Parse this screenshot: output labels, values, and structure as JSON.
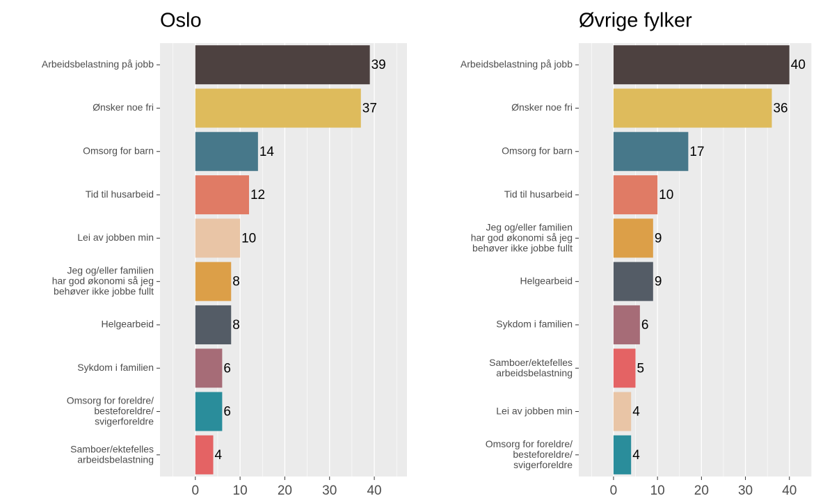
{
  "chart_data": [
    {
      "type": "bar",
      "orientation": "horizontal",
      "title": "Oslo",
      "categories": [
        "Arbeidsbelastning på jobb",
        "Ønsker noe fri",
        "Omsorg for barn",
        "Tid til husarbeid",
        "Lei av jobben min",
        "Jeg og/eller familien\nhar god økonomi så jeg\nbehøver ikke jobbe fullt",
        "Helgearbeid",
        "Sykdom i familien",
        "Omsorg for foreldre/\nbesteforeldre/\nsvigerforeldre",
        "Samboer/ektefelles\narbeidsbelastning"
      ],
      "values": [
        39,
        37,
        14,
        12,
        10,
        8,
        8,
        6,
        6,
        4
      ],
      "colors": [
        "#4d4140",
        "#debb5c",
        "#47788a",
        "#e07b65",
        "#e9c5a6",
        "#dc9f48",
        "#545c66",
        "#a66c77",
        "#2a8d9b",
        "#e46364"
      ],
      "xlim": [
        -7.9,
        47.3
      ],
      "xticks": [
        0,
        10,
        20,
        30,
        40
      ],
      "xticks_minor": [
        -5,
        5,
        15,
        25,
        35,
        45
      ],
      "grid": true
    },
    {
      "type": "bar",
      "orientation": "horizontal",
      "title": "Øvrige fylker",
      "categories": [
        "Arbeidsbelastning på jobb",
        "Ønsker noe fri",
        "Omsorg for barn",
        "Tid til husarbeid",
        "Jeg og/eller familien\nhar god økonomi så jeg\nbehøver ikke jobbe fullt",
        "Helgearbeid",
        "Sykdom i familien",
        "Samboer/ektefelles\narbeidsbelastning",
        "Lei av jobben min",
        "Omsorg for foreldre/\nbesteforeldre/\nsvigerforeldre"
      ],
      "values": [
        40,
        36,
        17,
        10,
        9,
        9,
        6,
        5,
        4,
        4
      ],
      "colors": [
        "#4d4140",
        "#debb5c",
        "#47788a",
        "#e07b65",
        "#dc9f48",
        "#545c66",
        "#a66c77",
        "#e46364",
        "#e9c5a6",
        "#2a8d9b"
      ],
      "xlim": [
        -7.9,
        45.1
      ],
      "xticks": [
        0,
        10,
        20,
        30,
        40
      ],
      "xticks_minor": [
        -5,
        5,
        15,
        25,
        35,
        45
      ],
      "grid": true
    }
  ]
}
